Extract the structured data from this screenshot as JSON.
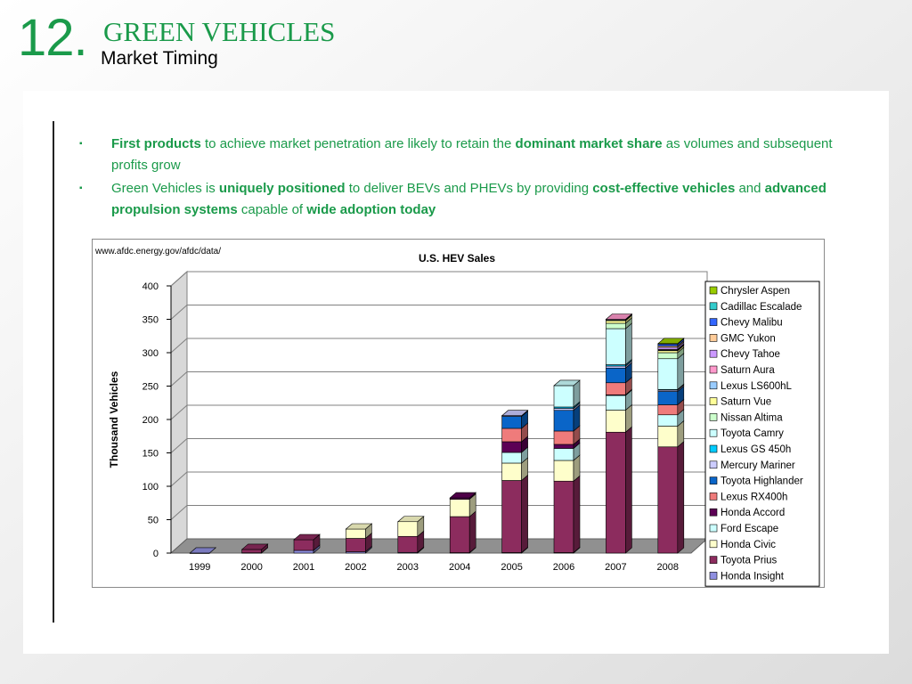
{
  "header": {
    "number": "12.",
    "title": "GREEN VEHICLES",
    "subtitle": "Market Timing"
  },
  "bullets": [
    {
      "segments": [
        {
          "text": "First products",
          "bold": true
        },
        {
          "text": " to achieve market penetration are likely to retain the ",
          "bold": false
        },
        {
          "text": "dominant market share",
          "bold": true
        },
        {
          "text": " as volumes and subsequent profits grow",
          "bold": false
        }
      ]
    },
    {
      "segments": [
        {
          "text": "Green Vehicles is ",
          "bold": false
        },
        {
          "text": "uniquely positioned",
          "bold": true
        },
        {
          "text": " to deliver BEVs and PHEVs by providing ",
          "bold": false
        },
        {
          "text": "cost-effective vehicles",
          "bold": true
        },
        {
          "text": " and ",
          "bold": false
        },
        {
          "text": "advanced propulsion systems",
          "bold": true
        },
        {
          "text": " capable of ",
          "bold": false
        },
        {
          "text": "wide adoption today",
          "bold": true
        }
      ]
    }
  ],
  "colors": {
    "accent": "#1a9a4a"
  },
  "chart_data": {
    "type": "bar",
    "stacked": true,
    "source": "www.afdc.energy.gov/afdc/data/",
    "title": "U.S. HEV Sales",
    "xlabel": "",
    "ylabel": "Thousand Vehicles",
    "ylim": [
      0,
      400
    ],
    "yticks": [
      0,
      50,
      100,
      150,
      200,
      250,
      300,
      350,
      400
    ],
    "grid": true,
    "legend_position": "right",
    "categories": [
      "1999",
      "2000",
      "2001",
      "2002",
      "2003",
      "2004",
      "2005",
      "2006",
      "2007",
      "2008"
    ],
    "series": [
      {
        "name": "Honda Insight",
        "color": "#8f8fe0",
        "values": [
          0.02,
          0.4,
          4,
          2,
          1,
          0.6,
          0.7,
          0.7,
          0,
          0
        ]
      },
      {
        "name": "Toyota Prius",
        "color": "#8c2c5e",
        "values": [
          0,
          5,
          16,
          20,
          24,
          54,
          108,
          107,
          181,
          159
        ]
      },
      {
        "name": "Honda Civic",
        "color": "#fefecb",
        "values": [
          0,
          0,
          0,
          14,
          22,
          26,
          26,
          31,
          33,
          31
        ]
      },
      {
        "name": "Ford Escape",
        "color": "#ccffff",
        "values": [
          0,
          0,
          0,
          0,
          0,
          0,
          16,
          18,
          22,
          17
        ]
      },
      {
        "name": "Honda Accord",
        "color": "#5c0055",
        "values": [
          0,
          0,
          0,
          0,
          0,
          2,
          16,
          6,
          1,
          0
        ]
      },
      {
        "name": "Lexus RX400h",
        "color": "#ef7b7b",
        "values": [
          0,
          0,
          0,
          0,
          0,
          0,
          20,
          20,
          18,
          15
        ]
      },
      {
        "name": "Toyota Highlander",
        "color": "#0a65c8",
        "values": [
          0,
          0,
          0,
          0,
          0,
          0,
          18,
          31,
          22,
          20
        ]
      },
      {
        "name": "Mercury Mariner",
        "color": "#ccccff",
        "values": [
          0,
          0,
          0,
          0,
          0,
          0,
          1,
          3,
          3,
          2
        ]
      },
      {
        "name": "Lexus GS 450h",
        "color": "#00ccff",
        "values": [
          0,
          0,
          0,
          0,
          0,
          0,
          0,
          2,
          2,
          1
        ]
      },
      {
        "name": "Toyota Camry",
        "color": "#ccffff",
        "values": [
          0,
          0,
          0,
          0,
          0,
          0,
          0,
          32,
          54,
          46
        ]
      },
      {
        "name": "Nissan Altima",
        "color": "#ccffcc",
        "values": [
          0,
          0,
          0,
          0,
          0,
          0,
          0,
          0,
          8,
          9
        ]
      },
      {
        "name": "Saturn Vue",
        "color": "#ffff99",
        "values": [
          0,
          0,
          0,
          0,
          0,
          0,
          0,
          0,
          4,
          3
        ]
      },
      {
        "name": "Lexus LS600hL",
        "color": "#99ccff",
        "values": [
          0,
          0,
          0,
          0,
          0,
          0,
          0,
          0,
          1,
          1
        ]
      },
      {
        "name": "Saturn Aura",
        "color": "#ff99cc",
        "values": [
          0,
          0,
          0,
          0,
          0,
          0,
          0,
          0,
          1,
          1
        ]
      },
      {
        "name": "Chevy Tahoe",
        "color": "#cc99ff",
        "values": [
          0,
          0,
          0,
          0,
          0,
          0,
          0,
          0,
          0,
          3
        ]
      },
      {
        "name": "GMC Yukon",
        "color": "#ffcc99",
        "values": [
          0,
          0,
          0,
          0,
          0,
          0,
          0,
          0,
          0,
          2
        ]
      },
      {
        "name": "Chevy Malibu",
        "color": "#3366ff",
        "values": [
          0,
          0,
          0,
          0,
          0,
          0,
          0,
          0,
          0,
          3
        ]
      },
      {
        "name": "Cadillac Escalade",
        "color": "#33cccc",
        "values": [
          0,
          0,
          0,
          0,
          0,
          0,
          0,
          0,
          0,
          0.5
        ]
      },
      {
        "name": "Chrysler Aspen",
        "color": "#99cc00",
        "values": [
          0,
          0,
          0,
          0,
          0,
          0,
          0,
          0,
          0,
          0.1
        ]
      }
    ]
  }
}
